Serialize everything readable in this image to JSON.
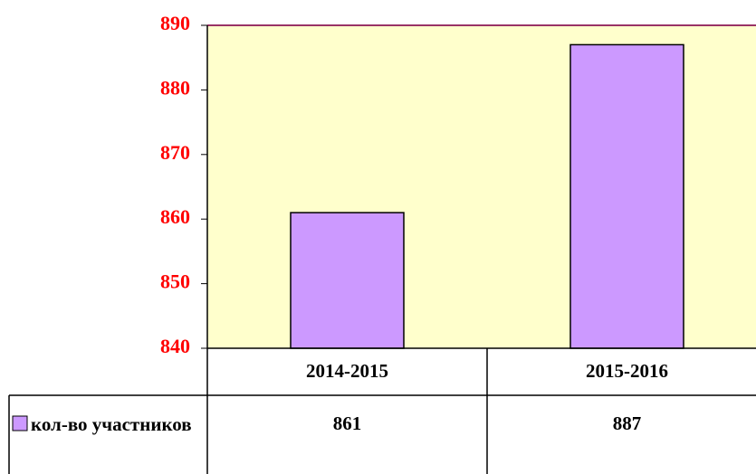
{
  "chart_data": {
    "type": "bar",
    "categories": [
      "2014-2015",
      "2015-2016"
    ],
    "series": [
      {
        "name": "кол-во участников",
        "color": "#cc99ff",
        "values": [
          861,
          887
        ]
      }
    ],
    "ylim": [
      840,
      890
    ],
    "yticks": [
      840,
      850,
      860,
      870,
      880,
      890
    ],
    "tick_color": "#ff0000",
    "plot_color": "#ffffcc",
    "legend": "data-table"
  }
}
